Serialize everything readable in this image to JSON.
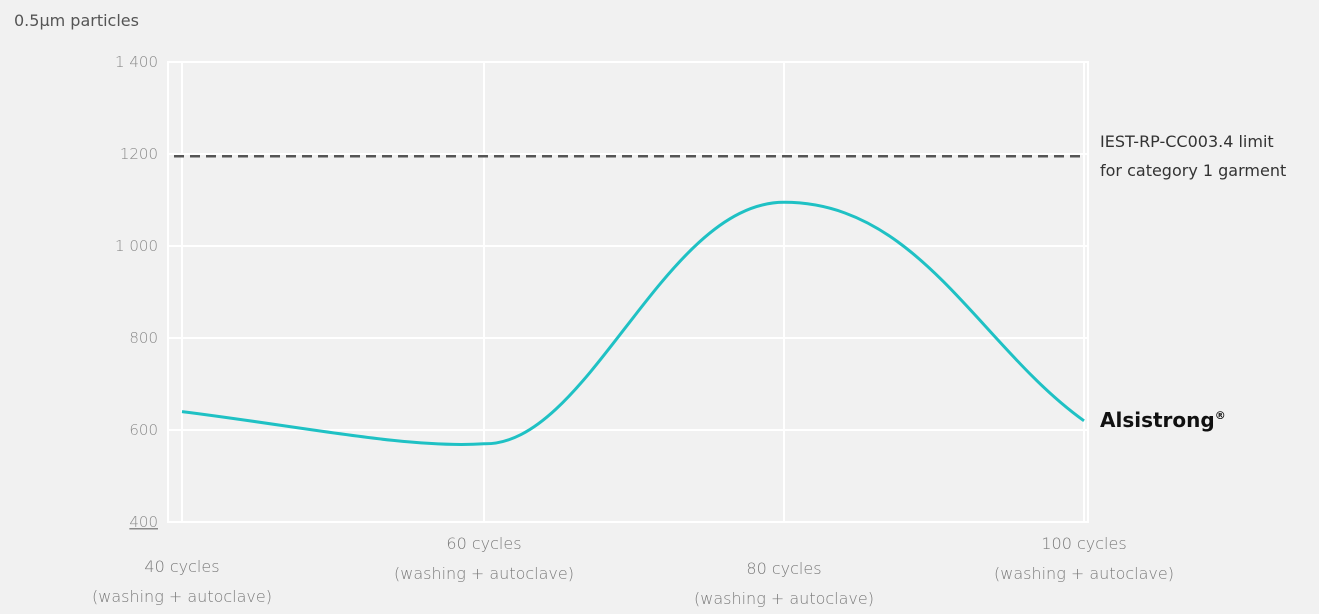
{
  "chart_data": {
    "type": "line",
    "ylabel": "0.5µm particles",
    "ylim": [
      400,
      1400
    ],
    "yticks": [
      "1 400",
      "1200",
      "1 000",
      "800",
      "600",
      "400"
    ],
    "ytick_values": [
      1400,
      1200,
      1000,
      800,
      600,
      400
    ],
    "categories": [
      {
        "line1": "40 cycles",
        "line2": "(washing + autoclave)"
      },
      {
        "line1": "60 cycles",
        "line2": "(washing + autoclave)"
      },
      {
        "line1": "80 cycles",
        "line2": "(washing + autoclave)"
      },
      {
        "line1": "100 cycles",
        "line2": "(washing + autoclave)"
      }
    ],
    "x": [
      40,
      60,
      80,
      100
    ],
    "series": [
      {
        "name": "Alsistrong",
        "name_mark": "®",
        "values": [
          640,
          570,
          1095,
          620
        ]
      }
    ],
    "reference_line": {
      "value": 1195,
      "label_line1": "IEST-RP-CC003.4 limit",
      "label_line2": "for category 1 garment"
    },
    "grid": true,
    "colors": {
      "series": "#1fc1c4",
      "reference": "#555555",
      "grid": "#ffffff",
      "plot_bg": "#f1f1f1"
    }
  }
}
